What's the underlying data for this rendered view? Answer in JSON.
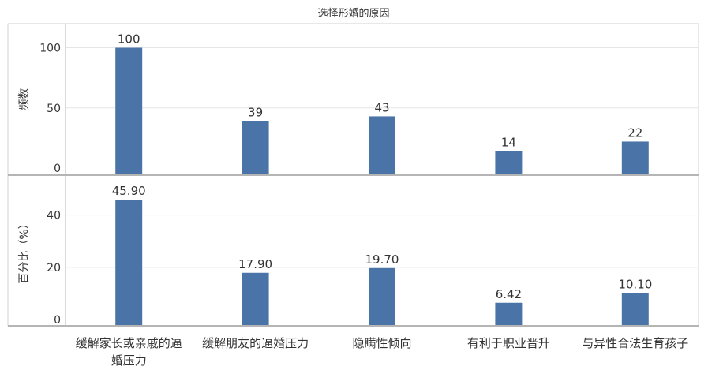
{
  "chart_data": {
    "type": "bar",
    "title": "选择形婚的原因",
    "categories": [
      [
        "缓解家长或亲戚的逼",
        "婚压力"
      ],
      [
        "缓解朋友的逼婚压力"
      ],
      [
        "隐瞒性倾向"
      ],
      [
        "有利于职业晋升"
      ],
      [
        "与异性合法生育孩子"
      ]
    ],
    "panels": [
      {
        "ylabel": "频数",
        "ylim": [
          0,
          120
        ],
        "ticks": [
          "0",
          "50",
          "100"
        ],
        "tick_values": [
          0,
          50,
          100
        ],
        "values": [
          100,
          39,
          43,
          14,
          22
        ],
        "labels": [
          "100",
          "39",
          "43",
          "14",
          "22"
        ]
      },
      {
        "ylabel": "百分比（%）",
        "ylim": [
          0,
          55
        ],
        "ticks": [
          "0",
          "20",
          "40"
        ],
        "tick_values": [
          0,
          20,
          40
        ],
        "values": [
          45.9,
          17.9,
          19.7,
          6.42,
          10.1
        ],
        "labels": [
          "45.90",
          "17.90",
          "19.70",
          "6.42",
          "10.10"
        ]
      }
    ],
    "grid": true,
    "bar_color": "#4a74a8"
  }
}
